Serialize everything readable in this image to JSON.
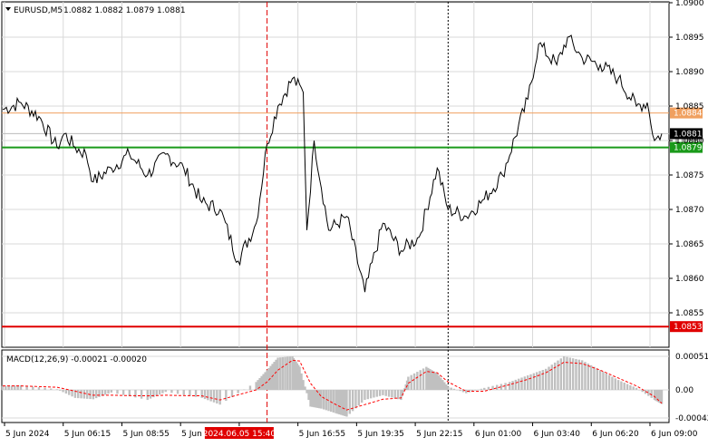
{
  "header": {
    "symbol": "EURUSD,M5",
    "ohlc": "1.0882 1.0882 1.0879 1.0881"
  },
  "colors": {
    "background": "#ffffff",
    "grid": "#d9d9d9",
    "price_line": "#000000",
    "resistance": "#f0a060",
    "support": "#1a9a1a",
    "lower_level": "#e00000",
    "current_tag": "#000000",
    "macd_hist": "#c0c0c0",
    "macd_signal": "#ff0000",
    "vline_red": "#e00000",
    "vline_black": "#000000"
  },
  "chart_data": [
    {
      "type": "line",
      "title": "EURUSD,M5",
      "ylim": [
        1.085,
        1.09
      ],
      "y_ticks": [
        "1.0900",
        "1.0895",
        "1.0890",
        "1.0885",
        "1.0880",
        "1.0875",
        "1.0870",
        "1.0865",
        "1.0860",
        "1.0855"
      ],
      "x_ticks": [
        "5 Jun 2024",
        "5 Jun 06:15",
        "5 Jun 08:55",
        "5 Jun 11:35",
        "2024.06.05 15:40",
        "5 Jun 16:55",
        "5 Jun 19:35",
        "5 Jun 22:15",
        "6 Jun 01:00",
        "6 Jun 03:40",
        "6 Jun 06:20",
        "6 Jun 09:00"
      ],
      "grid": true,
      "levels": [
        {
          "name": "resistance",
          "value": 1.0884,
          "label": "1.0884"
        },
        {
          "name": "support",
          "value": 1.0879,
          "label": "1.0879"
        },
        {
          "name": "lower",
          "value": 1.0853,
          "label": "1.0853"
        }
      ],
      "current_price": {
        "value": 1.0881,
        "label": "1.0881"
      },
      "hidden_tag_label": "1.0880",
      "vertical_markers": [
        {
          "x_index": 73,
          "style": "red-dashed"
        },
        {
          "x_index": 123,
          "style": "black-dotted"
        }
      ],
      "x": [
        0,
        5,
        10,
        15,
        17,
        20,
        23,
        25,
        30,
        35,
        40,
        45,
        50,
        55,
        60,
        65,
        70,
        73,
        76,
        80,
        83,
        84,
        86,
        90,
        95,
        100,
        105,
        110,
        115,
        120,
        123,
        128,
        133,
        138,
        145,
        148,
        153,
        156,
        160,
        165,
        170,
        175,
        178,
        180,
        182
      ],
      "values": [
        1.08845,
        1.08855,
        1.08835,
        1.0879,
        1.0881,
        1.0879,
        1.0878,
        1.0874,
        1.0876,
        1.0878,
        1.0875,
        1.0878,
        1.0876,
        1.0871,
        1.087,
        1.08625,
        1.0868,
        1.08795,
        1.0885,
        1.0889,
        1.0887,
        1.0867,
        1.088,
        1.0867,
        1.0869,
        1.0858,
        1.0868,
        1.0864,
        1.0866,
        1.0876,
        1.087,
        1.0869,
        1.08715,
        1.0875,
        1.0886,
        1.0894,
        1.0891,
        1.0895,
        1.0892,
        1.0891,
        1.0889,
        1.0885,
        1.08855,
        1.088,
        1.0881
      ]
    },
    {
      "type": "area",
      "title": "MACD(12,26,9) -0.00021 -0.00020",
      "ylim": [
        -0.00042,
        0.00051
      ],
      "y_ticks": [
        "0.00051",
        "0.00",
        "-0.00042"
      ],
      "x": [
        0,
        5,
        15,
        20,
        25,
        30,
        40,
        45,
        55,
        60,
        70,
        73,
        76,
        80,
        82,
        85,
        88,
        92,
        95,
        100,
        105,
        110,
        112,
        117,
        120,
        123,
        128,
        133,
        140,
        145,
        150,
        155,
        160,
        165,
        170,
        175,
        180,
        182
      ],
      "series": [
        {
          "name": "MACD",
          "values": [
            6e-05,
            7e-05,
            1e-05,
            -0.00012,
            -0.00014,
            -4e-05,
            -0.00015,
            -3e-05,
            -0.00012,
            -0.00022,
            0.00012,
            0.0003,
            0.00049,
            0.00051,
            0.00035,
            -0.00025,
            -0.00028,
            -0.00035,
            -0.0004,
            -0.00015,
            -8e-05,
            -0.00015,
            0.0002,
            0.00035,
            0.00025,
            5e-05,
            -5e-05,
            3e-05,
            0.00012,
            0.00022,
            0.00032,
            0.00051,
            0.00045,
            0.0003,
            0.00015,
            3e-05,
            -0.00015,
            -0.00021
          ]
        },
        {
          "name": "Signal",
          "values": [
            6e-05,
            6e-05,
            4e-05,
            -2e-05,
            -8e-05,
            -8e-05,
            -9e-05,
            -8e-05,
            -9e-05,
            -0.00015,
            0.0,
            0.00012,
            0.0003,
            0.00045,
            0.00044,
            0.0001,
            -0.0001,
            -0.00022,
            -0.0003,
            -0.00022,
            -0.00014,
            -0.00012,
            0.0001,
            0.00028,
            0.00026,
            0.00012,
            -2e-05,
            -2e-05,
            8e-05,
            0.00016,
            0.00026,
            0.00042,
            0.0004,
            0.0003,
            0.00018,
            6e-05,
            -0.0001,
            -0.0002
          ]
        }
      ]
    }
  ]
}
